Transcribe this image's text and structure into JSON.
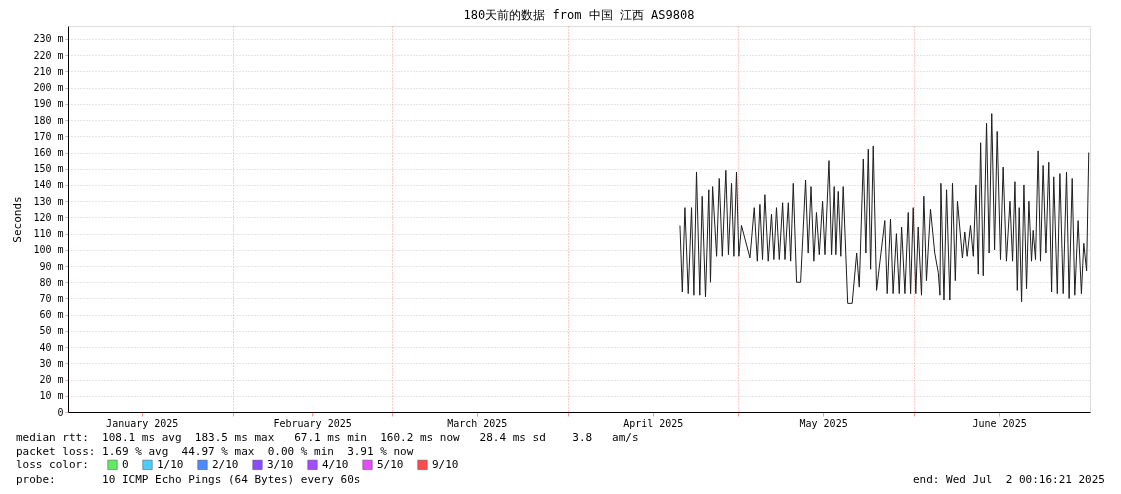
{
  "chart_data": {
    "type": "line",
    "title": "180天前的数据 from 中国 江西 AS9808",
    "ylabel": "Seconds",
    "xlim": [
      "2025-01-03T00:16",
      "2025-07-02T00:16"
    ],
    "xticks": [
      {
        "value": "2025-01-16",
        "label": "January 2025"
      },
      {
        "value": "2025-02-01",
        "label": null
      },
      {
        "value": "2025-02-15",
        "label": "February 2025"
      },
      {
        "value": "2025-03-01",
        "label": null
      },
      {
        "value": "2025-03-16",
        "label": "March 2025"
      },
      {
        "value": "2025-04-01",
        "label": null
      },
      {
        "value": "2025-04-16",
        "label": "April 2025"
      },
      {
        "value": "2025-05-01",
        "label": null
      },
      {
        "value": "2025-05-16",
        "label": "May 2025"
      },
      {
        "value": "2025-06-01",
        "label": null
      },
      {
        "value": "2025-06-16",
        "label": "June 2025"
      }
    ],
    "ylim": [
      0,
      238
    ],
    "yticks": [
      0,
      {
        "value": 10,
        "label": "10 m"
      },
      {
        "value": 20,
        "label": "20 m"
      },
      {
        "value": 30,
        "label": "30 m"
      },
      {
        "value": 40,
        "label": "40 m"
      },
      {
        "value": 50,
        "label": "50 m"
      },
      {
        "value": 60,
        "label": "60 m"
      },
      {
        "value": 70,
        "label": "70 m"
      },
      {
        "value": 80,
        "label": "80 m"
      },
      {
        "value": 90,
        "label": "90 m"
      },
      {
        "value": 100,
        "label": "100 m"
      },
      {
        "value": 110,
        "label": "110 m"
      },
      {
        "value": 120,
        "label": "120 m"
      },
      {
        "value": 130,
        "label": "130 m"
      },
      {
        "value": 140,
        "label": "140 m"
      },
      {
        "value": 150,
        "label": "150 m"
      },
      {
        "value": 160,
        "label": "160 m"
      },
      {
        "value": 170,
        "label": "170 m"
      },
      {
        "value": 180,
        "label": "180 m"
      },
      {
        "value": 190,
        "label": "190 m"
      },
      {
        "value": 200,
        "label": "200 m"
      },
      {
        "value": 210,
        "label": "210 m"
      },
      {
        "value": 220,
        "label": "220 m"
      },
      {
        "value": 230,
        "label": "230 m"
      }
    ],
    "grid": true,
    "legend": "bottom left",
    "legend_title": "loss color:",
    "marker": "none",
    "line_style": "solid",
    "series": [
      {
        "color": "#1e1e1e",
        "x": [
          "2025-04-20T19:00",
          "2025-04-21T05:00",
          "2025-04-21T16:00",
          "2025-04-22T06:00",
          "2025-04-22T20:00",
          "2025-04-23T06:00",
          "2025-04-23T17:00",
          "2025-04-24T07:00",
          "2025-04-24T17:00",
          "2025-04-25T07:00",
          "2025-04-25T21:00",
          "2025-04-26T04:00",
          "2025-04-26T13:00",
          "2025-04-27T06:00",
          "2025-04-27T17:00",
          "2025-04-28T06:00",
          "2025-04-28T21:00",
          "2025-04-29T08:00",
          "2025-04-29T21:00",
          "2025-04-30T07:00",
          "2025-04-30T18:00",
          "2025-05-01T04:00",
          "2025-05-01T15:00",
          "2025-05-03T03:00",
          "2025-05-03T21:00",
          "2025-05-04T10:00",
          "2025-05-04T21:00",
          "2025-05-05T08:00",
          "2025-05-05T18:00",
          "2025-05-06T08:00",
          "2025-05-06T22:00",
          "2025-05-07T08:00",
          "2025-05-07T19:00",
          "2025-05-08T07:00",
          "2025-05-08T21:00",
          "2025-05-09T07:00",
          "2025-05-09T21:00",
          "2025-05-10T07:00",
          "2025-05-10T18:00",
          "2025-05-11T08:00",
          "2025-05-12T01:00",
          "2025-05-12T22:00",
          "2025-05-13T09:00",
          "2025-05-13T21:00",
          "2025-05-14T09:00",
          "2025-05-14T20:00",
          "2025-05-15T08:00",
          "2025-05-15T22:00",
          "2025-05-16T08:00",
          "2025-05-17T01:00",
          "2025-05-17T12:00",
          "2025-05-17T23:00",
          "2025-05-18T06:00",
          "2025-05-18T16:00",
          "2025-05-19T03:00",
          "2025-05-19T13:00",
          "2025-05-20T08:00",
          "2025-05-21T03:00",
          "2025-05-21T22:00",
          "2025-05-22T09:00",
          "2025-05-23T02:00",
          "2025-05-23T13:00",
          "2025-05-23T23:00",
          "2025-05-24T09:00",
          "2025-05-24T20:00",
          "2025-05-25T10:00",
          "2025-05-26T21:00",
          "2025-05-27T07:00",
          "2025-05-27T21:00",
          "2025-05-28T08:00",
          "2025-05-28T22:00",
          "2025-05-29T10:00",
          "2025-05-29T20:00",
          "2025-05-30T10:00",
          "2025-05-31T00:00",
          "2025-05-31T10:00",
          "2025-05-31T21:00",
          "2025-06-01T08:00",
          "2025-06-01T18:00",
          "2025-06-02T08:00",
          "2025-06-02T18:00",
          "2025-06-03T05:00",
          "2025-06-03T22:00",
          "2025-06-04T16:00",
          "2025-06-05T07:00",
          "2025-06-05T14:00",
          "2025-06-05T18:00",
          "2025-06-06T07:00",
          "2025-06-06T18:00",
          "2025-06-07T08:00",
          "2025-06-07T19:00",
          "2025-06-08T07:00",
          "2025-06-08T16:00",
          "2025-06-09T13:00",
          "2025-06-09T23:00",
          "2025-06-10T09:00",
          "2025-06-10T23:00",
          "2025-06-11T11:00",
          "2025-06-11T22:00",
          "2025-06-12T08:00",
          "2025-06-12T18:00",
          "2025-06-13T05:00",
          "2025-06-13T19:00",
          "2025-06-14T06:00",
          "2025-06-14T17:00",
          "2025-06-15T05:00",
          "2025-06-15T16:00",
          "2025-06-16T06:00",
          "2025-06-16T17:00",
          "2025-06-17T07:00",
          "2025-06-17T22:00",
          "2025-06-18T09:00",
          "2025-06-18T19:00",
          "2025-06-19T05:00",
          "2025-06-19T13:00",
          "2025-06-19T23:00",
          "2025-06-20T09:00",
          "2025-06-20T20:00",
          "2025-06-21T06:00",
          "2025-06-21T17:00",
          "2025-06-22T00:00",
          "2025-06-22T10:00",
          "2025-06-22T21:00",
          "2025-06-23T07:00",
          "2025-06-23T18:00",
          "2025-06-24T06:00",
          "2025-06-24T18:00",
          "2025-06-25T06:00",
          "2025-06-25T15:00",
          "2025-06-26T06:00",
          "2025-06-26T17:00",
          "2025-06-27T07:00",
          "2025-06-27T21:00",
          "2025-06-28T08:00",
          "2025-06-28T21:00",
          "2025-06-29T08:00",
          "2025-06-29T22:00",
          "2025-06-30T12:00",
          "2025-06-30T22:00",
          "2025-07-01T10:00",
          "2025-07-01T19:00"
        ],
        "values": [
          115,
          74,
          126,
          73,
          126,
          72,
          148,
          72,
          133,
          71,
          137,
          80,
          139,
          96,
          144,
          96,
          149,
          97,
          141,
          96,
          148,
          96,
          115,
          95,
          126,
          93,
          128,
          94,
          134,
          93,
          122,
          94,
          126,
          94,
          129,
          94,
          129,
          93,
          141,
          80,
          80,
          143,
          98,
          139,
          93,
          123,
          97,
          130,
          97,
          155,
          97,
          139,
          97,
          136,
          96,
          139,
          67,
          67,
          98,
          77,
          156,
          98,
          162,
          88,
          164,
          75,
          118,
          73,
          119,
          73,
          110,
          73,
          114,
          73,
          123,
          73,
          126,
          73,
          114,
          72,
          133,
          81,
          125,
          98,
          86,
          72,
          141,
          69,
          137,
          69,
          141,
          81,
          130,
          95,
          111,
          96,
          115,
          96,
          140,
          85,
          166,
          84,
          178,
          98,
          184,
          100,
          173,
          94,
          151,
          93,
          130,
          93,
          142,
          75,
          126,
          68,
          140,
          76,
          130,
          93,
          112,
          94,
          161,
          93,
          152,
          98,
          154,
          74,
          145,
          73,
          147,
          73,
          148,
          70,
          144,
          72,
          118,
          73,
          104,
          87,
          160
        ]
      },
      {
        "name": "0",
        "color": "#20e020"
      },
      {
        "name": "1/10",
        "color": "#00b8ff"
      },
      {
        "name": "2/10",
        "color": "#0059ff"
      },
      {
        "name": "3/10",
        "color": "#5e00ff"
      },
      {
        "name": "4/10",
        "color": "#7e00ff"
      },
      {
        "name": "5/10",
        "color": "#dd00ff"
      },
      {
        "name": "9/10",
        "color": "#ff0000"
      }
    ],
    "annotations": [
      "median rtt:  108.1 ms avg  183.5 ms max   67.1 ms min  160.2 ms now   28.4 ms sd    3.8   am/s",
      "packet loss: 1.69 % avg  44.97 % max  0.00 % min  3.91 % now",
      "probe:       10 ICMP Echo Pings (64 Bytes) every 60s",
      "end: Wed Jul  2 00:16:21 2025"
    ]
  }
}
